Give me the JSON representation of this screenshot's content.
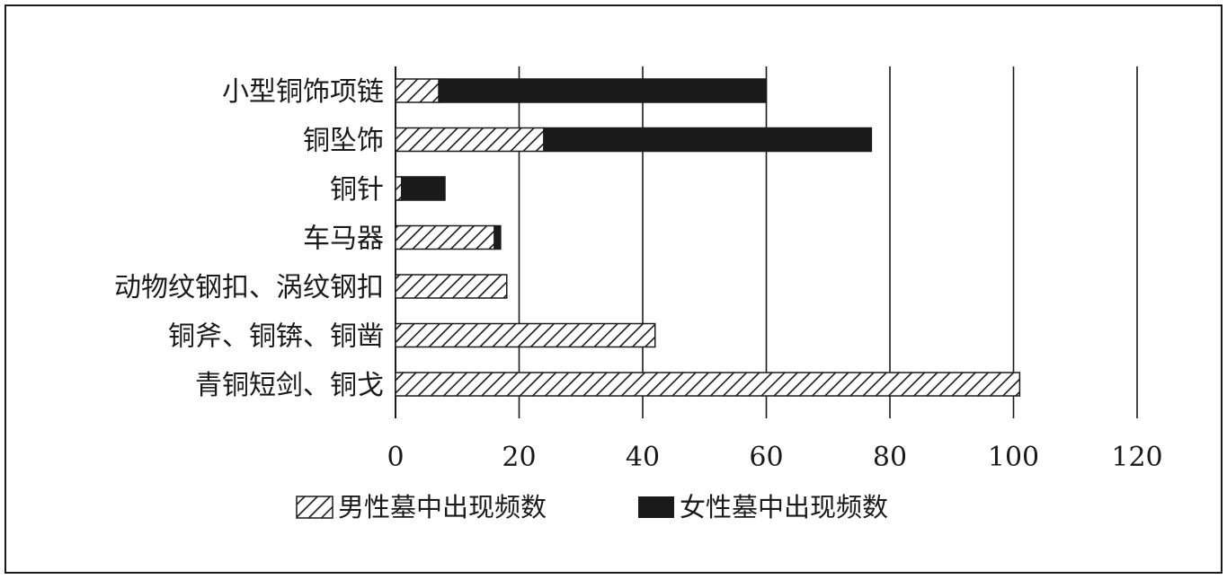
{
  "chart_data": {
    "type": "bar",
    "orientation": "horizontal",
    "stacked": true,
    "categories": [
      "小型铜饰项链",
      "铜坠饰",
      "铜针",
      "车马器",
      "动物纹钢扣、涡纹钢扣",
      "铜斧、铜锛、铜凿",
      "青铜短剑、铜戈"
    ],
    "series": [
      {
        "name": "男性墓中出现频数",
        "pattern": "hatched",
        "values": [
          7,
          24,
          1,
          16,
          18,
          42,
          101
        ]
      },
      {
        "name": "女性墓中出现频数",
        "pattern": "solid",
        "values": [
          53,
          53,
          7,
          1,
          0,
          0,
          0
        ]
      }
    ],
    "xlim": [
      0,
      120
    ],
    "xticks": [
      "0",
      "20",
      "40",
      "60",
      "80",
      "100",
      "120"
    ],
    "grid": true,
    "legend_position": "bottom",
    "colors": {
      "solid": "#1a1a1a",
      "hatch": "#1a1a1a",
      "background": "#ffffff"
    }
  }
}
